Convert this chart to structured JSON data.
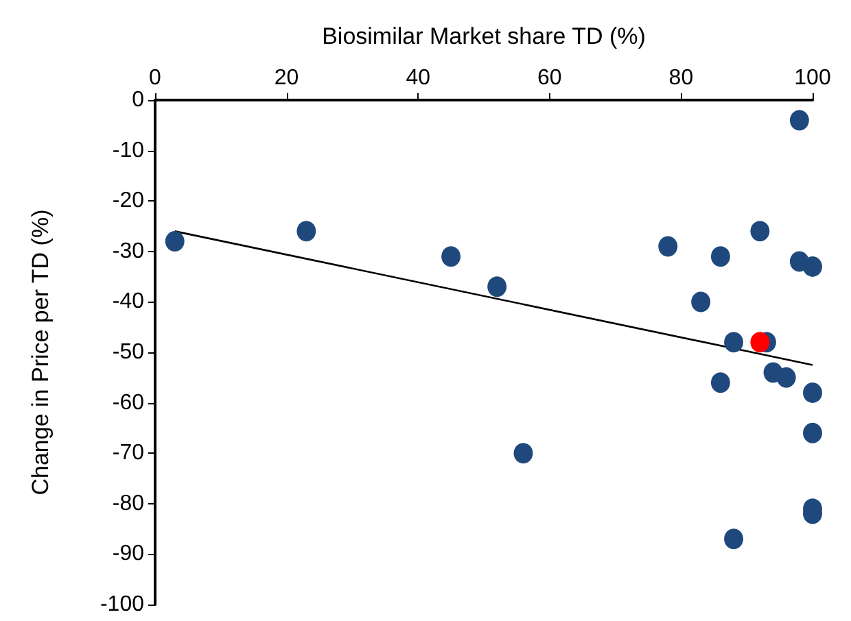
{
  "chart_data": {
    "type": "scatter",
    "xlabel": "Biosimilar Market share TD (%)",
    "ylabel": "Change in Price per TD (%)",
    "xlim": [
      0,
      100
    ],
    "xticks": [
      0,
      20,
      40,
      60,
      80,
      100
    ],
    "ylim": [
      -100,
      0
    ],
    "yticks": [
      -100,
      -90,
      -80,
      -70,
      -60,
      -50,
      -40,
      -30,
      -20,
      -10,
      0
    ],
    "grid": false,
    "marker": "circle",
    "series": [
      {
        "color": "#1f497d",
        "x": [
          3,
          23,
          45,
          52,
          56,
          78,
          86,
          83,
          86,
          88,
          88,
          93,
          92,
          98,
          98,
          100,
          94,
          96,
          100,
          100,
          100,
          100
        ],
        "values": [
          -28,
          -26,
          -31,
          -37,
          -70,
          -29,
          -31,
          -40,
          -56,
          -48,
          -87,
          -48,
          -26,
          -4,
          -32,
          -33,
          -54,
          -55,
          -58,
          -66,
          -81,
          -82
        ]
      },
      {
        "color": "#ff0000",
        "x": [
          92
        ],
        "values": [
          -48
        ]
      },
      {
        "type": "line",
        "color": "#000000",
        "marker": "none",
        "line_style": "solid",
        "x": [
          3,
          100
        ],
        "values": [
          -26,
          -52.5
        ]
      }
    ]
  }
}
